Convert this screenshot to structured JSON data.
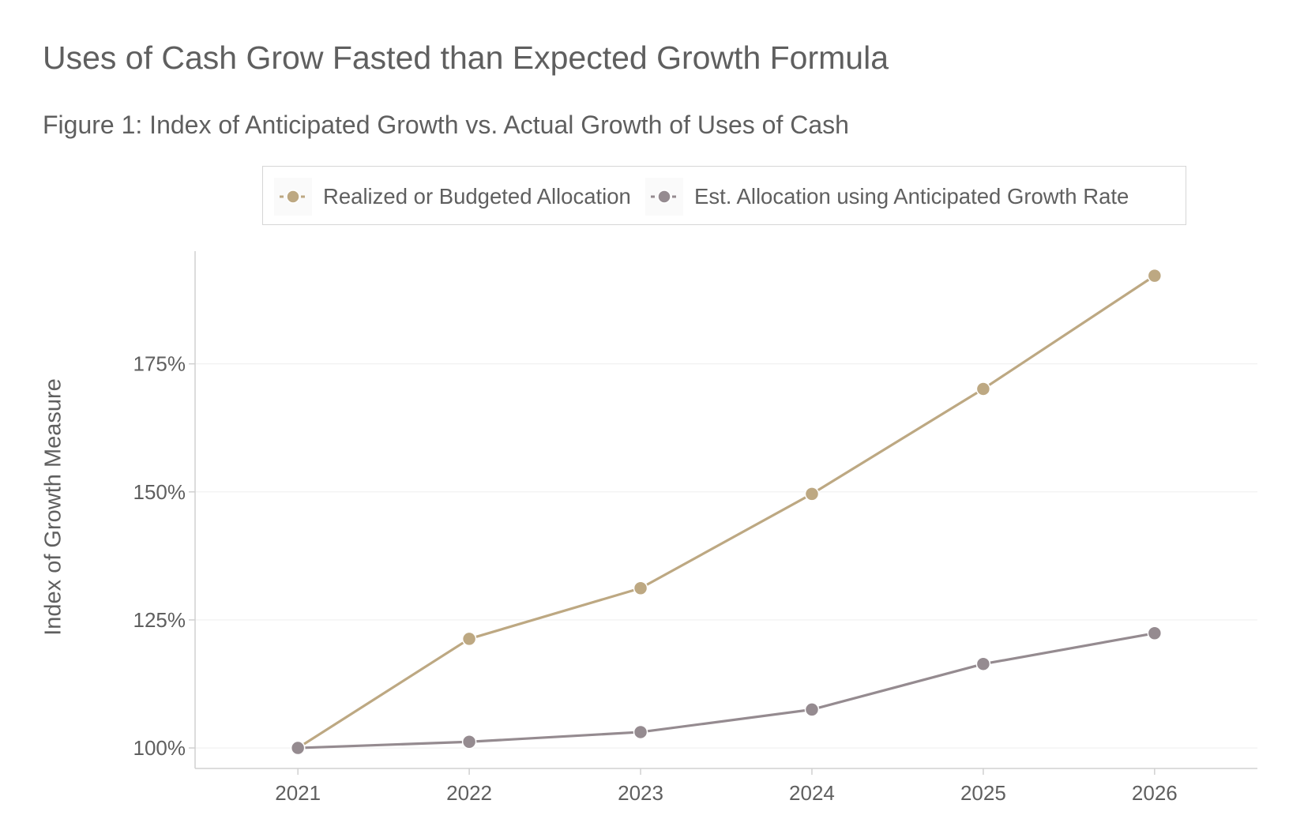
{
  "chart_data": {
    "type": "line",
    "title": "Uses of Cash Grow Fasted than Expected Growth Formula",
    "subtitle": "Figure 1: Index of Anticipated Growth vs. Actual Growth of Uses of Cash",
    "xlabel": "",
    "ylabel": "Index of Growth Measure",
    "x": [
      2021,
      2022,
      2023,
      2024,
      2025,
      2026
    ],
    "x_tick_labels": [
      "2021",
      "2022",
      "2023",
      "2024",
      "2025",
      "2026"
    ],
    "y_ticks": [
      100,
      125,
      150,
      175
    ],
    "y_tick_labels": [
      "100%",
      "125%",
      "150%",
      "175%"
    ],
    "xlim": [
      2020.4,
      2026.6
    ],
    "ylim": [
      96,
      197
    ],
    "grid": true,
    "legend_position": "top",
    "series": [
      {
        "name": "Realized or Budgeted Allocation",
        "values": [
          100,
          121.3,
          131.2,
          149.6,
          170.1,
          192.2
        ],
        "color": "#bda882"
      },
      {
        "name": "Est. Allocation using Anticipated Growth Rate",
        "values": [
          100,
          101.2,
          103.1,
          107.5,
          116.4,
          122.4
        ],
        "color": "#958b90"
      }
    ]
  }
}
